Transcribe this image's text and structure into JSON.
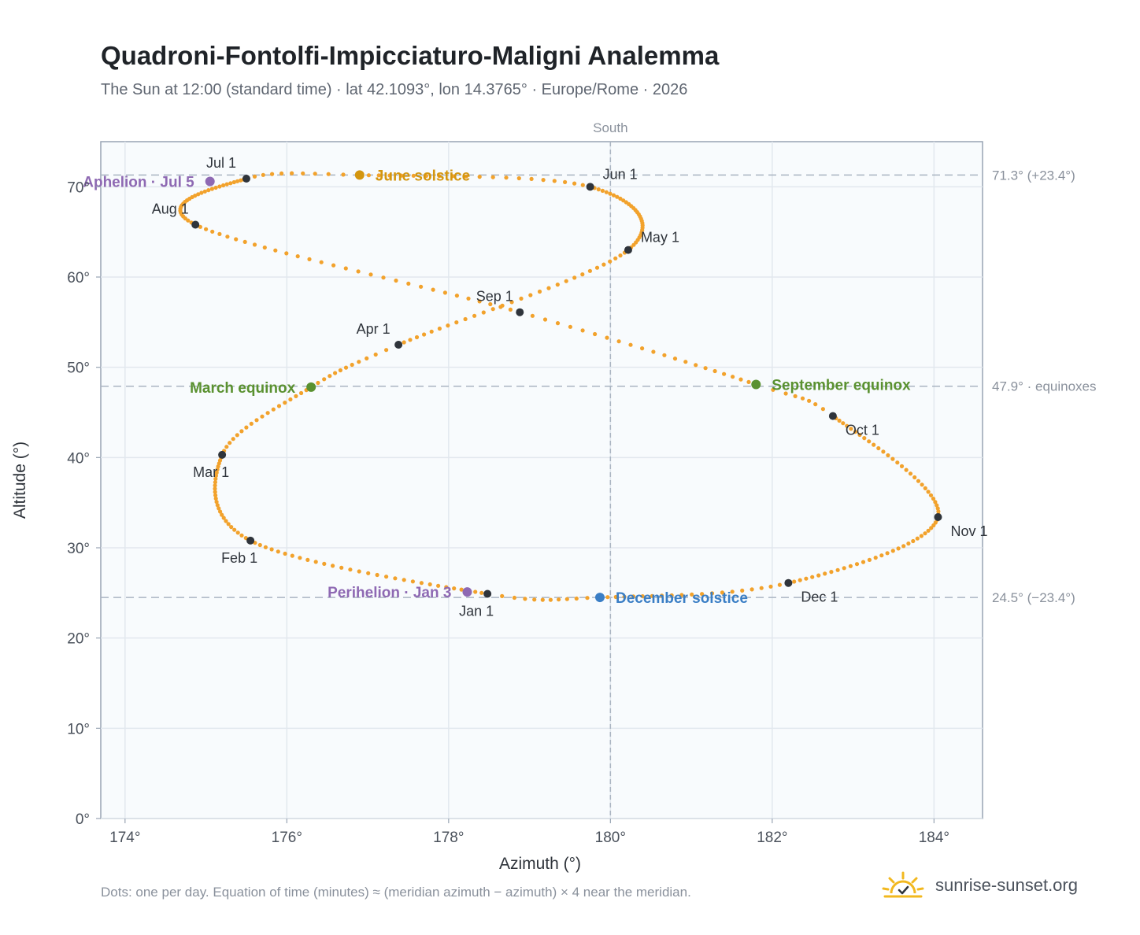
{
  "header": {
    "title": "Quadroni-Fontolfi-Impicciaturo-Maligni Analemma",
    "subtitle": "The Sun at 12:00 (standard time) · lat 42.1093°, lon 14.3765° · Europe/Rome · 2026"
  },
  "footer": {
    "note": "Dots: one per day. Equation of time (minutes) ≈ (meridian azimuth − azimuth) × 4 near the meridian.",
    "brand": "sunrise-sunset.org"
  },
  "colors": {
    "analemma": "#f2a22c",
    "month_marker": "#2f343b",
    "june_solstice": "#d4960f",
    "december_solstice": "#3a7ec5",
    "equinox": "#5a9130",
    "perihelion_aphelion": "#8e69b3",
    "plot_background": "#f8fbfd",
    "grid": "#e2e8ee",
    "reference_line": "#aab5c2",
    "logo": "#f2b81f"
  },
  "chart_data": {
    "type": "scatter",
    "title": "Quadroni-Fontolfi-Impicciaturo-Maligni Analemma",
    "xlabel": "Azimuth (°)",
    "ylabel": "Altitude (°)",
    "xlim": [
      173.7,
      184.6
    ],
    "ylim": [
      0,
      75
    ],
    "x_ticks": [
      174,
      176,
      178,
      180,
      182,
      184
    ],
    "y_ticks": [
      0,
      10,
      20,
      30,
      40,
      50,
      60,
      70
    ],
    "x_tick_labels": [
      "174°",
      "176°",
      "178°",
      "180°",
      "182°",
      "184°"
    ],
    "y_tick_labels": [
      "0°",
      "10°",
      "20°",
      "30°",
      "40°",
      "50°",
      "60°",
      "70°"
    ],
    "grid": true,
    "meridian": {
      "azimuth": 180,
      "label": "South"
    },
    "reference_lines": [
      {
        "altitude": 71.3,
        "label": "71.3° (+23.4°)"
      },
      {
        "altitude": 47.9,
        "label": "47.9° · equinoxes"
      },
      {
        "altitude": 24.5,
        "label": "24.5° (−23.4°)"
      }
    ],
    "daily_path_anchors": [
      {
        "day": 1,
        "az": 178.48,
        "alt": 24.9
      },
      {
        "day": 32,
        "az": 175.55,
        "alt": 30.8
      },
      {
        "day": 60,
        "az": 175.2,
        "alt": 40.3
      },
      {
        "day": 79,
        "az": 176.3,
        "alt": 47.8
      },
      {
        "day": 91,
        "az": 177.38,
        "alt": 52.5
      },
      {
        "day": 121,
        "az": 180.22,
        "alt": 63.0
      },
      {
        "day": 152,
        "az": 179.75,
        "alt": 70.0
      },
      {
        "day": 172,
        "az": 176.9,
        "alt": 71.3
      },
      {
        "day": 182,
        "az": 175.5,
        "alt": 70.9
      },
      {
        "day": 213,
        "az": 174.87,
        "alt": 65.8
      },
      {
        "day": 244,
        "az": 178.88,
        "alt": 56.1
      },
      {
        "day": 266,
        "az": 181.8,
        "alt": 48.1
      },
      {
        "day": 274,
        "az": 182.75,
        "alt": 44.6
      },
      {
        "day": 305,
        "az": 184.05,
        "alt": 33.4
      },
      {
        "day": 335,
        "az": 182.2,
        "alt": 26.1
      },
      {
        "day": 355,
        "az": 179.87,
        "alt": 24.5
      },
      {
        "day": 366,
        "az": 178.48,
        "alt": 24.9
      }
    ],
    "month_markers": [
      {
        "label": "Jan 1",
        "az": 178.48,
        "alt": 24.9,
        "pos": "below-left"
      },
      {
        "label": "Feb 1",
        "az": 175.55,
        "alt": 30.8,
        "pos": "below-left"
      },
      {
        "label": "Mar 1",
        "az": 175.2,
        "alt": 40.3,
        "pos": "below-left"
      },
      {
        "label": "Apr 1",
        "az": 177.38,
        "alt": 52.5,
        "pos": "above-left"
      },
      {
        "label": "May 1",
        "az": 180.22,
        "alt": 63.0,
        "pos": "above-right"
      },
      {
        "label": "Jun 1",
        "az": 179.75,
        "alt": 70.0,
        "pos": "above-right"
      },
      {
        "label": "Jul 1",
        "az": 175.5,
        "alt": 70.9,
        "pos": "above-left"
      },
      {
        "label": "Aug 1",
        "az": 174.87,
        "alt": 65.8,
        "pos": "above-left"
      },
      {
        "label": "Sep 1",
        "az": 178.88,
        "alt": 56.1,
        "pos": "above-left"
      },
      {
        "label": "Oct 1",
        "az": 182.75,
        "alt": 44.6,
        "pos": "below-right"
      },
      {
        "label": "Nov 1",
        "az": 184.05,
        "alt": 33.4,
        "pos": "below-right"
      },
      {
        "label": "Dec 1",
        "az": 182.2,
        "alt": 26.1,
        "pos": "below-right"
      }
    ],
    "events": [
      {
        "label": "June solstice",
        "az": 176.9,
        "alt": 71.3,
        "color": "#d4960f",
        "pos": "right"
      },
      {
        "label": "December solstice",
        "az": 179.87,
        "alt": 24.5,
        "color": "#3a7ec5",
        "pos": "right"
      },
      {
        "label": "March equinox",
        "az": 176.3,
        "alt": 47.8,
        "color": "#5a9130",
        "pos": "left"
      },
      {
        "label": "September equinox",
        "az": 181.8,
        "alt": 48.1,
        "color": "#5a9130",
        "pos": "right"
      },
      {
        "label": "Perihelion · Jan 3",
        "az": 178.23,
        "alt": 25.1,
        "color": "#8e69b3",
        "pos": "left"
      },
      {
        "label": "Aphelion · Jul 5",
        "az": 175.05,
        "alt": 70.6,
        "color": "#8e69b3",
        "pos": "left"
      }
    ]
  }
}
